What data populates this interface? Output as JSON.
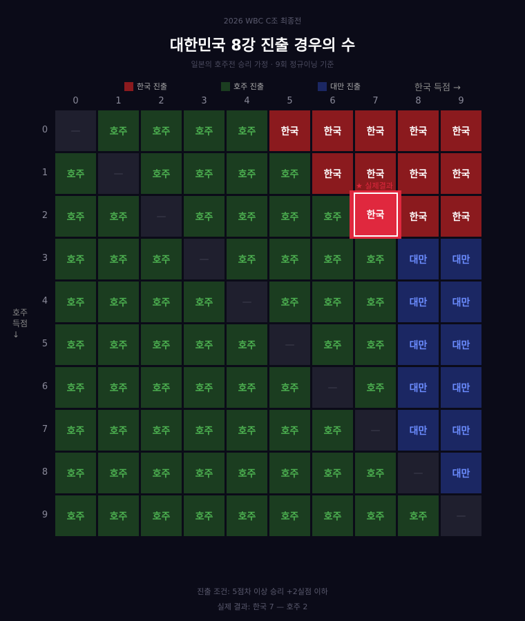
{
  "header": {
    "supertitle": "2026 WBC C조 최종전",
    "title": "대한민국 8강 진출 경우의 수",
    "subtitle": "일본의 호주전 승리 가정 · 9회 정규이닝 기준"
  },
  "legend": [
    {
      "label": "한국 진출",
      "color": "#8b1a1e"
    },
    {
      "label": "호주 진출",
      "color": "#1b3d20"
    },
    {
      "label": "대만 진출",
      "color": "#1b2763"
    }
  ],
  "axes": {
    "x_title": "한국 득점 →",
    "y_title_1": "호주",
    "y_title_2": "득점",
    "y_arrow": "↓",
    "x_ticks": [
      "0",
      "1",
      "2",
      "3",
      "4",
      "5",
      "6",
      "7",
      "8",
      "9"
    ],
    "y_ticks": [
      "0",
      "1",
      "2",
      "3",
      "4",
      "5",
      "6",
      "7",
      "8",
      "9"
    ]
  },
  "grid": [
    [
      "—",
      "호주",
      "호주",
      "호주",
      "호주",
      "한국",
      "한국",
      "한국",
      "한국",
      "한국"
    ],
    [
      "호주",
      "—",
      "호주",
      "호주",
      "호주",
      "호주",
      "한국",
      "한국",
      "한국",
      "한국"
    ],
    [
      "호주",
      "호주",
      "—",
      "호주",
      "호주",
      "호주",
      "호주",
      "한국",
      "한국",
      "한국"
    ],
    [
      "호주",
      "호주",
      "호주",
      "—",
      "호주",
      "호주",
      "호주",
      "호주",
      "대만",
      "대만"
    ],
    [
      "호주",
      "호주",
      "호주",
      "호주",
      "—",
      "호주",
      "호주",
      "호주",
      "대만",
      "대만"
    ],
    [
      "호주",
      "호주",
      "호주",
      "호주",
      "호주",
      "—",
      "호주",
      "호주",
      "대만",
      "대만"
    ],
    [
      "호주",
      "호주",
      "호주",
      "호주",
      "호주",
      "호주",
      "—",
      "호주",
      "대만",
      "대만"
    ],
    [
      "호주",
      "호주",
      "호주",
      "호주",
      "호주",
      "호주",
      "호주",
      "—",
      "대만",
      "대만"
    ],
    [
      "호주",
      "호주",
      "호주",
      "호주",
      "호주",
      "호주",
      "호주",
      "호주",
      "—",
      "대만"
    ],
    [
      "호주",
      "호주",
      "호주",
      "호주",
      "호주",
      "호주",
      "호주",
      "호주",
      "호주",
      "—"
    ]
  ],
  "highlight": {
    "label": "★ 실제결과",
    "cell_text": "한국",
    "korea_score": 7,
    "australia_score": 2
  },
  "footer": {
    "condition": "진출 조건: 5점차 이상 승리 +2실점 이하",
    "actual": "실제 결과: 한국 7 — 호주 2"
  }
}
